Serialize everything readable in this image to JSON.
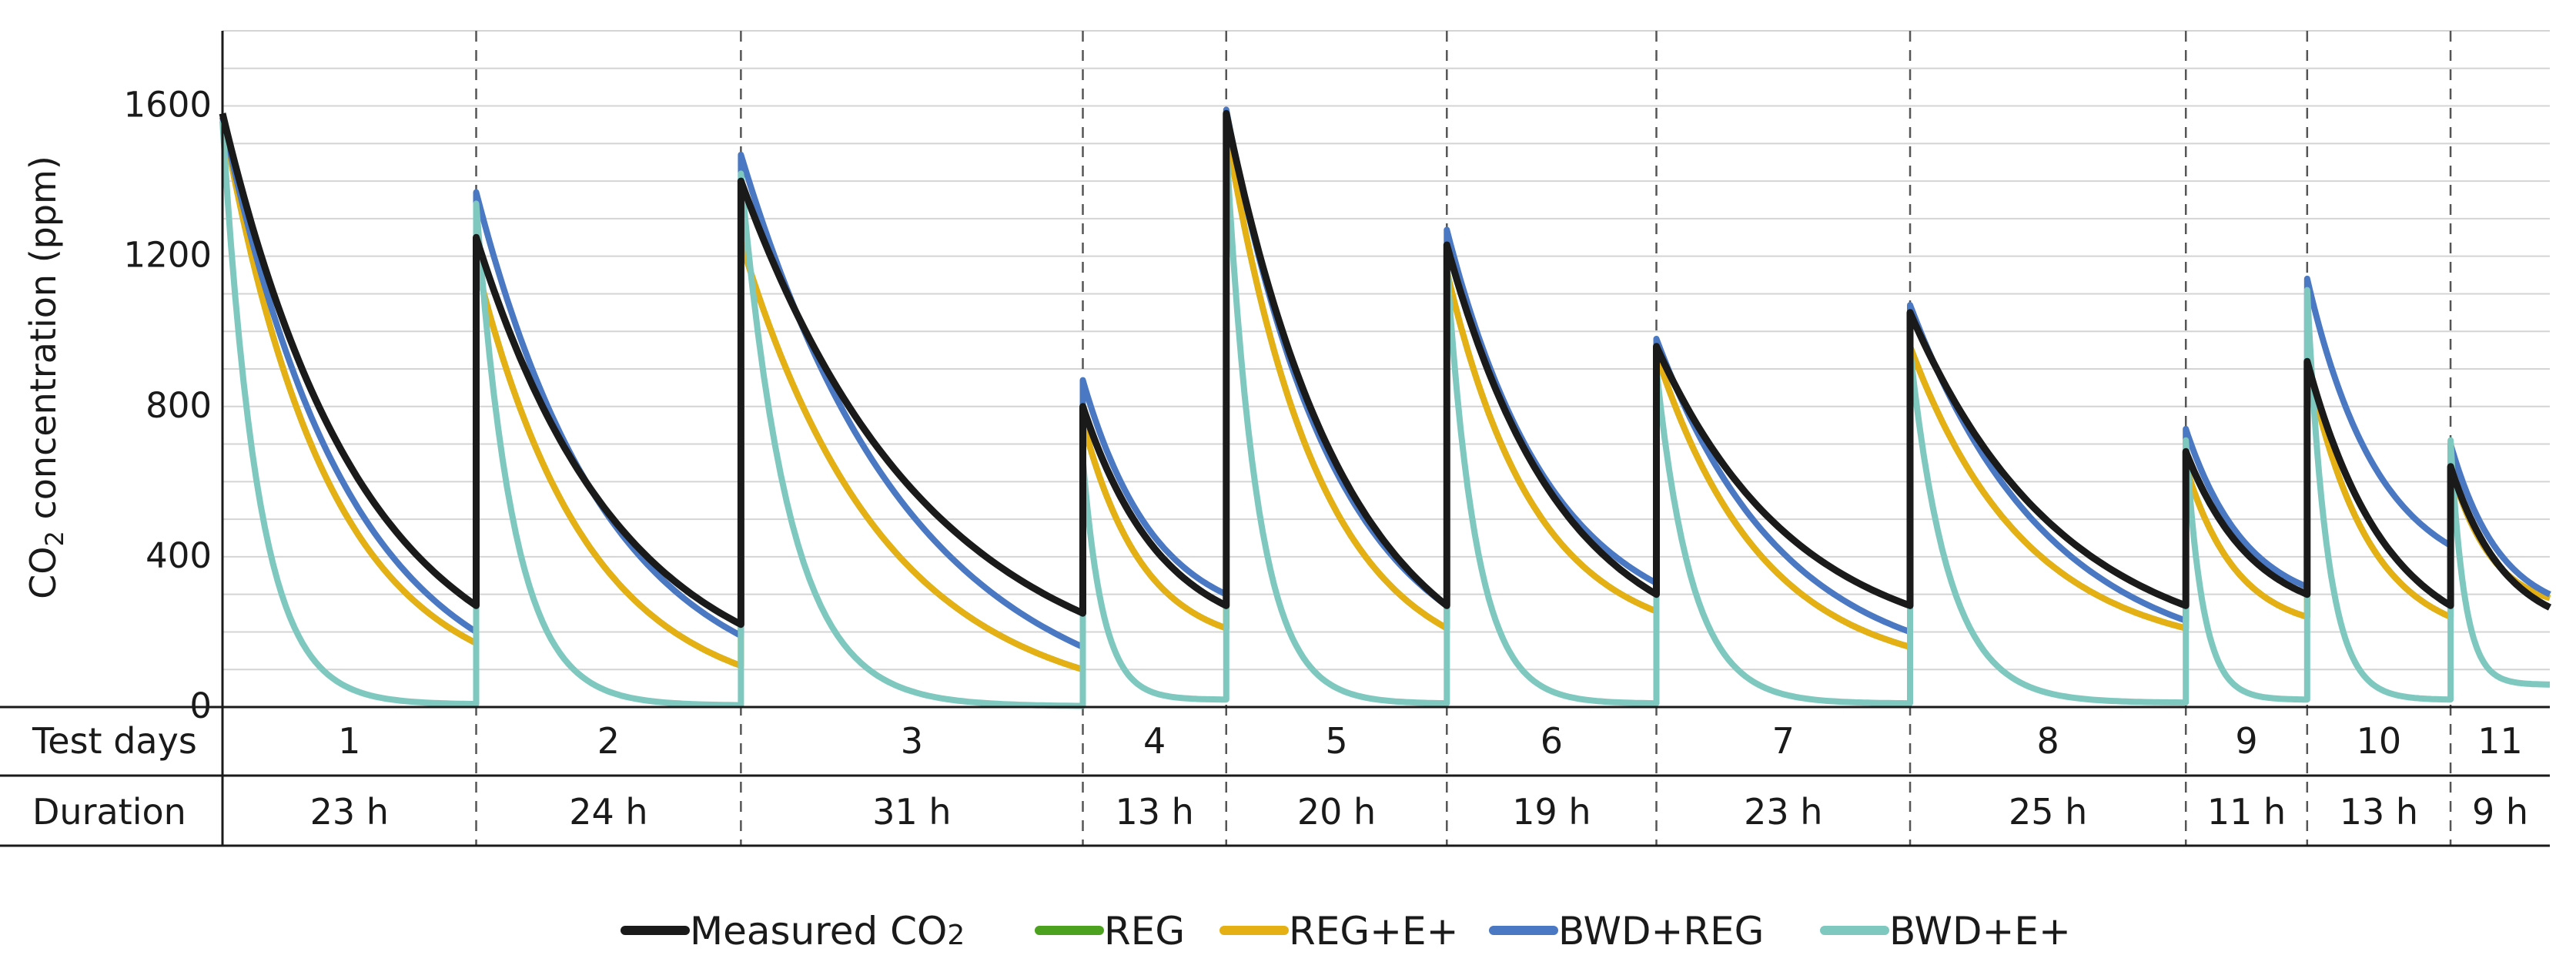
{
  "chart_data": {
    "type": "line",
    "ylabel": {
      "pre": "CO",
      "sub": "2",
      "post": " concentration (ppm)"
    },
    "ylim": [
      0,
      1800
    ],
    "yticks": [
      0,
      400,
      800,
      1200,
      1600
    ],
    "grid": true,
    "legend_position": "bottom",
    "x_unit": "h",
    "table": {
      "row1_label": "Test days",
      "row2_label": "Duration",
      "days": [
        "1",
        "2",
        "3",
        "4",
        "5",
        "6",
        "7",
        "8",
        "9",
        "10",
        "11"
      ],
      "durations": [
        "23 h",
        "24 h",
        "31 h",
        "13 h",
        "20 h",
        "19 h",
        "23 h",
        "25 h",
        "11 h",
        "13 h",
        "9 h"
      ],
      "hours": [
        23,
        24,
        31,
        13,
        20,
        19,
        23,
        25,
        11,
        13,
        9
      ]
    },
    "series": [
      {
        "name": "Measured CO",
        "name_sub": "2",
        "color": "#1a1a1a",
        "segments": [
          [
            1580,
            270
          ],
          [
            1250,
            220
          ],
          [
            1400,
            250
          ],
          [
            800,
            270
          ],
          [
            1580,
            270
          ],
          [
            1230,
            300
          ],
          [
            960,
            270
          ],
          [
            1050,
            270
          ],
          [
            680,
            300
          ],
          [
            920,
            270
          ],
          [
            640,
            265
          ]
        ]
      },
      {
        "name": "REG",
        "color": "#4ca21f",
        "segments": [
          [
            1570,
            170
          ],
          [
            1180,
            110
          ],
          [
            1240,
            100
          ],
          [
            760,
            210
          ],
          [
            1540,
            210
          ],
          [
            1160,
            255
          ],
          [
            940,
            160
          ],
          [
            960,
            210
          ],
          [
            640,
            240
          ],
          [
            920,
            240
          ],
          [
            640,
            290
          ]
        ]
      },
      {
        "name": "REG+E+",
        "color": "#e5b014",
        "segments": [
          [
            1570,
            170
          ],
          [
            1180,
            110
          ],
          [
            1240,
            100
          ],
          [
            760,
            210
          ],
          [
            1540,
            210
          ],
          [
            1160,
            255
          ],
          [
            940,
            160
          ],
          [
            960,
            210
          ],
          [
            640,
            240
          ],
          [
            920,
            240
          ],
          [
            640,
            290
          ]
        ]
      },
      {
        "name": "BWD+REG",
        "color": "#4a78c2",
        "segments": [
          [
            1570,
            200
          ],
          [
            1370,
            190
          ],
          [
            1470,
            160
          ],
          [
            870,
            300
          ],
          [
            1590,
            270
          ],
          [
            1270,
            330
          ],
          [
            980,
            200
          ],
          [
            1070,
            230
          ],
          [
            740,
            320
          ],
          [
            1140,
            430
          ],
          [
            700,
            300
          ]
        ]
      },
      {
        "name": "BWD+E+",
        "color": "#7ec8c0",
        "segments": [
          [
            1560,
            8
          ],
          [
            1340,
            5
          ],
          [
            1420,
            3
          ],
          [
            660,
            20
          ],
          [
            1500,
            10
          ],
          [
            1180,
            10
          ],
          [
            900,
            10
          ],
          [
            950,
            12
          ],
          [
            710,
            20
          ],
          [
            1110,
            20
          ],
          [
            710,
            60
          ]
        ]
      }
    ]
  },
  "legend_entries": [
    {
      "label": "Measured CO",
      "sub": "2",
      "color": "#1a1a1a"
    },
    {
      "label": "REG",
      "sub": "",
      "color": "#4ca21f"
    },
    {
      "label": "REG+E+",
      "sub": "",
      "color": "#e5b014"
    },
    {
      "label": "BWD+REG",
      "sub": "",
      "color": "#4a78c2"
    },
    {
      "label": "BWD+E+",
      "sub": "",
      "color": "#7ec8c0"
    }
  ]
}
